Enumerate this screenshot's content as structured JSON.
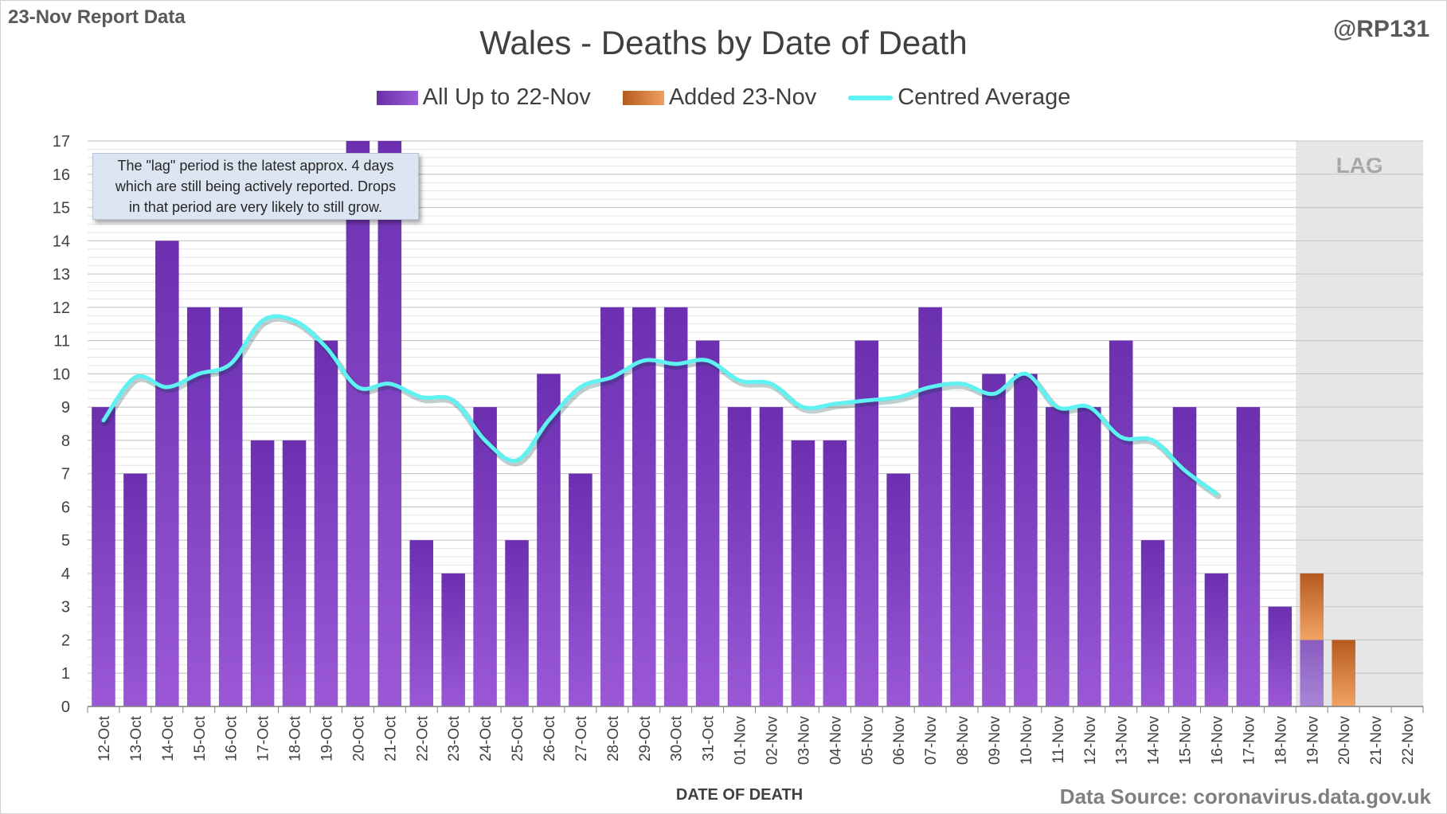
{
  "header": {
    "report_label": "23-Nov Report Data",
    "author": "@RP131"
  },
  "note": {
    "lines": [
      "The \"lag\" period is the latest approx. 4 days",
      "which are still being actively reported.  Drops",
      "in that period are very likely to still grow."
    ]
  },
  "footer": {
    "source": "Data Source: coronavirus.data.gov.uk"
  },
  "colors": {
    "bar_prior": "#7a35c2",
    "bar_added": "#d9772f",
    "average_line": "#5ef2f2",
    "lag_shade": "#e6e6e6"
  },
  "chart_data": {
    "type": "bar",
    "title": "Wales - Deaths by Date of Death",
    "xlabel": "DATE OF DEATH",
    "ylabel": "",
    "ylim": [
      0,
      17
    ],
    "yticks": [
      0,
      1,
      2,
      3,
      4,
      5,
      6,
      7,
      8,
      9,
      10,
      11,
      12,
      13,
      14,
      15,
      16,
      17
    ],
    "grid": true,
    "legend_position": "top",
    "lag_label": "LAG",
    "lag_start_category": "19-Nov",
    "categories": [
      "12-Oct",
      "13-Oct",
      "14-Oct",
      "15-Oct",
      "16-Oct",
      "17-Oct",
      "18-Oct",
      "19-Oct",
      "20-Oct",
      "21-Oct",
      "22-Oct",
      "23-Oct",
      "24-Oct",
      "25-Oct",
      "26-Oct",
      "27-Oct",
      "28-Oct",
      "29-Oct",
      "30-Oct",
      "31-Oct",
      "01-Nov",
      "02-Nov",
      "03-Nov",
      "04-Nov",
      "05-Nov",
      "06-Nov",
      "07-Nov",
      "08-Nov",
      "09-Nov",
      "10-Nov",
      "11-Nov",
      "12-Nov",
      "13-Nov",
      "14-Nov",
      "15-Nov",
      "16-Nov",
      "17-Nov",
      "18-Nov",
      "19-Nov",
      "20-Nov",
      "21-Nov",
      "22-Nov"
    ],
    "series": [
      {
        "name": "All Up to 22-Nov",
        "kind": "stacked-bar",
        "values": [
          9,
          7,
          14,
          12,
          12,
          8,
          8,
          11,
          17,
          17,
          5,
          4,
          9,
          5,
          10,
          7,
          12,
          12,
          12,
          11,
          9,
          9,
          8,
          8,
          11,
          7,
          12,
          9,
          10,
          10,
          9,
          9,
          11,
          5,
          9,
          4,
          9,
          3,
          2,
          0,
          0,
          0
        ]
      },
      {
        "name": "Added 23-Nov",
        "kind": "stacked-bar",
        "values": [
          0,
          0,
          0,
          0,
          0,
          0,
          0,
          0,
          0,
          0,
          0,
          0,
          0,
          0,
          0,
          0,
          0,
          0,
          0,
          0,
          0,
          0,
          0,
          0,
          0,
          0,
          0,
          0,
          0,
          0,
          0,
          0,
          0,
          0,
          0,
          0,
          0,
          0,
          2,
          2,
          0,
          0
        ]
      },
      {
        "name": "Centred Average",
        "kind": "line",
        "values": [
          8.6,
          9.9,
          9.6,
          10.0,
          10.3,
          11.6,
          11.6,
          10.8,
          9.6,
          9.7,
          9.3,
          9.2,
          8.0,
          7.4,
          8.6,
          9.6,
          9.9,
          10.4,
          10.3,
          10.4,
          9.8,
          9.7,
          9.0,
          9.1,
          9.2,
          9.3,
          9.6,
          9.7,
          9.4,
          10.0,
          9.0,
          9.0,
          8.1,
          8.0,
          7.1,
          6.4,
          null,
          null,
          null,
          null,
          null,
          null
        ]
      }
    ]
  }
}
